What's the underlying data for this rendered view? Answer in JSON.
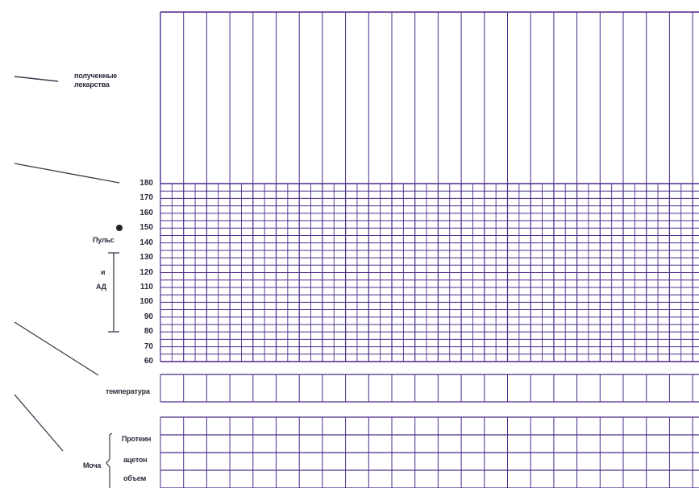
{
  "labels": {
    "medications": "полученные лекарства",
    "pulse_bp_1": "Пульс",
    "pulse_bp_2": "и",
    "pulse_bp_3": "АД",
    "temperature": "температура",
    "urine": "Моча",
    "protein": "Протеин",
    "acetone": "ацетон",
    "volume": "объем"
  },
  "scale_ticks": [
    "180",
    "170",
    "160",
    "150",
    "140",
    "130",
    "120",
    "110",
    "100",
    "90",
    "80",
    "70",
    "60"
  ],
  "colors": {
    "grid": "#4b2a8c",
    "text": "#2a2a3a"
  }
}
